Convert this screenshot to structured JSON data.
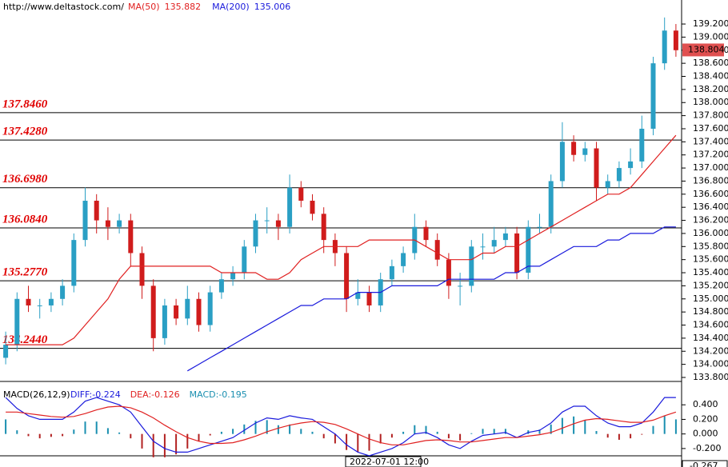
{
  "chart_data": [
    {
      "type": "candlestick",
      "source": "http://www.deltastock.com/",
      "x_label": "2022-07-01 12:00",
      "up_color": "#2a9fc4",
      "down_color": "#d01c1c",
      "last_price": 138.804,
      "open": [
        134.1,
        134.3,
        135.0,
        134.9,
        134.9,
        135.0,
        135.2,
        135.9,
        136.5,
        136.2,
        136.1,
        136.2,
        135.7,
        135.2,
        134.4,
        134.9,
        134.7,
        135.0,
        134.6,
        135.1,
        135.3,
        135.4,
        135.8,
        136.2,
        136.2,
        136.1,
        136.7,
        136.5,
        136.3,
        135.9,
        135.7,
        135.0,
        135.1,
        134.9,
        135.3,
        135.5,
        135.7,
        136.1,
        135.9,
        135.6,
        135.2,
        135.2,
        135.8,
        135.8,
        135.9,
        136.0,
        135.4,
        136.1,
        136.1,
        136.8,
        137.4,
        137.2,
        137.3,
        136.7,
        136.8,
        137.0,
        137.1,
        137.6,
        138.6,
        139.1
      ],
      "high": [
        134.5,
        135.1,
        135.2,
        135.0,
        135.1,
        135.3,
        136.0,
        136.7,
        136.6,
        136.4,
        136.3,
        136.3,
        135.8,
        135.3,
        135.0,
        135.0,
        135.2,
        135.1,
        135.2,
        135.4,
        135.5,
        135.9,
        136.3,
        136.4,
        136.3,
        136.9,
        136.8,
        136.6,
        136.4,
        136.0,
        135.8,
        135.3,
        135.2,
        135.4,
        135.6,
        135.8,
        136.3,
        136.2,
        136.0,
        135.7,
        135.4,
        135.9,
        136.0,
        136.1,
        136.1,
        136.1,
        136.2,
        136.3,
        136.9,
        137.7,
        137.5,
        137.4,
        137.4,
        136.9,
        137.1,
        137.3,
        137.8,
        138.7,
        139.3,
        139.2
      ],
      "low": [
        134.0,
        134.2,
        134.8,
        134.7,
        134.8,
        134.9,
        135.1,
        135.8,
        136.0,
        135.9,
        136.0,
        135.5,
        135.0,
        134.2,
        134.3,
        134.6,
        134.6,
        134.5,
        134.5,
        135.0,
        135.2,
        135.3,
        135.7,
        136.0,
        135.9,
        136.0,
        136.4,
        136.2,
        135.7,
        135.5,
        134.8,
        134.9,
        134.8,
        134.8,
        135.2,
        135.4,
        135.6,
        135.8,
        135.5,
        135.0,
        134.9,
        135.1,
        135.6,
        135.7,
        135.8,
        135.3,
        135.3,
        136.0,
        136.0,
        136.7,
        137.1,
        137.1,
        136.5,
        136.6,
        136.7,
        136.9,
        137.0,
        137.5,
        138.5,
        138.7
      ],
      "close": [
        134.3,
        135.0,
        134.9,
        134.9,
        135.0,
        135.2,
        135.9,
        136.5,
        136.2,
        136.1,
        136.2,
        135.7,
        135.2,
        134.4,
        134.9,
        134.7,
        135.0,
        134.6,
        135.1,
        135.3,
        135.4,
        135.8,
        136.2,
        136.2,
        136.1,
        136.7,
        136.5,
        136.3,
        135.9,
        135.7,
        135.0,
        135.1,
        134.9,
        135.3,
        135.5,
        135.7,
        136.1,
        135.9,
        135.6,
        135.2,
        135.2,
        135.8,
        135.8,
        135.9,
        136.0,
        135.4,
        136.1,
        136.1,
        136.8,
        137.4,
        137.2,
        137.3,
        136.7,
        136.8,
        137.0,
        137.1,
        137.6,
        138.6,
        139.1,
        138.8
      ],
      "series": [
        {
          "name": "MA(50)",
          "color": "#e02020",
          "legend_value": 135.882,
          "values": [
            134.3,
            134.3,
            134.3,
            134.3,
            134.3,
            134.3,
            134.4,
            134.6,
            134.8,
            135.0,
            135.3,
            135.5,
            135.5,
            135.5,
            135.5,
            135.5,
            135.5,
            135.5,
            135.5,
            135.4,
            135.4,
            135.4,
            135.4,
            135.3,
            135.3,
            135.4,
            135.6,
            135.7,
            135.8,
            135.8,
            135.8,
            135.8,
            135.9,
            135.9,
            135.9,
            135.9,
            135.9,
            135.8,
            135.7,
            135.6,
            135.6,
            135.6,
            135.7,
            135.7,
            135.8,
            135.8,
            135.9,
            136.0,
            136.1,
            136.2,
            136.3,
            136.4,
            136.5,
            136.6,
            136.6,
            136.7,
            136.9,
            137.1,
            137.3,
            137.5
          ]
        },
        {
          "name": "MA(200)",
          "color": "#1a1adc",
          "legend_value": 135.006,
          "values": [
            null,
            null,
            null,
            null,
            null,
            null,
            null,
            null,
            null,
            null,
            null,
            null,
            null,
            null,
            null,
            null,
            133.9,
            134.0,
            134.1,
            134.2,
            134.3,
            134.4,
            134.5,
            134.6,
            134.7,
            134.8,
            134.9,
            134.9,
            135.0,
            135.0,
            135.0,
            135.1,
            135.1,
            135.1,
            135.2,
            135.2,
            135.2,
            135.2,
            135.2,
            135.3,
            135.3,
            135.3,
            135.3,
            135.3,
            135.4,
            135.4,
            135.5,
            135.5,
            135.6,
            135.7,
            135.8,
            135.8,
            135.8,
            135.9,
            135.9,
            136.0,
            136.0,
            136.0,
            136.1,
            136.1
          ]
        }
      ],
      "levels": [
        {
          "value": 137.846,
          "label": "137.8460"
        },
        {
          "value": 137.428,
          "label": "137.4280"
        },
        {
          "value": 136.698,
          "label": "136.6980"
        },
        {
          "value": 136.084,
          "label": "136.0840"
        },
        {
          "value": 135.277,
          "label": "135.2770"
        },
        {
          "value": 134.244,
          "label": "134.2440"
        }
      ],
      "ylim": [
        133.751,
        139.567
      ],
      "yticks": [
        {
          "value": 133.8,
          "label": "133.800"
        },
        {
          "value": 134.0,
          "label": "134.000"
        },
        {
          "value": 134.2,
          "label": "134.200"
        },
        {
          "value": 134.4,
          "label": "134.400"
        },
        {
          "value": 134.6,
          "label": "134.600"
        },
        {
          "value": 134.8,
          "label": "134.800"
        },
        {
          "value": 135.0,
          "label": "135.000"
        },
        {
          "value": 135.2,
          "label": "135.200"
        },
        {
          "value": 135.4,
          "label": "135.400"
        },
        {
          "value": 135.6,
          "label": "135.600"
        },
        {
          "value": 135.8,
          "label": "135.800"
        },
        {
          "value": 136.0,
          "label": "136.000"
        },
        {
          "value": 136.2,
          "label": "136.200"
        },
        {
          "value": 136.4,
          "label": "136.400"
        },
        {
          "value": 136.6,
          "label": "136.600"
        },
        {
          "value": 136.8,
          "label": "136.800"
        },
        {
          "value": 137.0,
          "label": "137.000"
        },
        {
          "value": 137.2,
          "label": "137.200"
        },
        {
          "value": 137.4,
          "label": "137.400"
        },
        {
          "value": 137.6,
          "label": "137.600"
        },
        {
          "value": 137.8,
          "label": "137.800"
        },
        {
          "value": 138.0,
          "label": "138.000"
        },
        {
          "value": 138.2,
          "label": "138.200"
        },
        {
          "value": 138.4,
          "label": "138.400"
        },
        {
          "value": 138.6,
          "label": "138.600"
        },
        {
          "value": 138.8,
          "label": "138.800"
        },
        {
          "value": 139.0,
          "label": "139.000"
        },
        {
          "value": 139.2,
          "label": "139.200"
        }
      ]
    },
    {
      "type": "macd",
      "title": "MACD(26,12,9)",
      "current_value": -0.267,
      "series": [
        {
          "name": "DIFF:",
          "color": "#1a1adc",
          "legend_value": -0.224,
          "values": [
            0.5,
            0.35,
            0.25,
            0.2,
            0.2,
            0.2,
            0.3,
            0.45,
            0.5,
            0.45,
            0.4,
            0.3,
            0.1,
            -0.1,
            -0.2,
            -0.25,
            -0.25,
            -0.2,
            -0.15,
            -0.1,
            -0.05,
            0.05,
            0.15,
            0.22,
            0.2,
            0.25,
            0.22,
            0.2,
            0.1,
            0.0,
            -0.15,
            -0.25,
            -0.3,
            -0.25,
            -0.2,
            -0.12,
            0.0,
            0.02,
            -0.05,
            -0.15,
            -0.2,
            -0.1,
            -0.02,
            0.0,
            0.02,
            -0.05,
            0.02,
            0.05,
            0.15,
            0.3,
            0.38,
            0.38,
            0.25,
            0.15,
            0.1,
            0.1,
            0.15,
            0.3,
            0.5,
            0.5
          ]
        },
        {
          "name": "DEA:",
          "color": "#e02020",
          "legend_value": -0.126,
          "values": [
            0.3,
            0.3,
            0.28,
            0.26,
            0.24,
            0.23,
            0.24,
            0.28,
            0.33,
            0.37,
            0.38,
            0.36,
            0.3,
            0.22,
            0.12,
            0.03,
            -0.05,
            -0.1,
            -0.13,
            -0.13,
            -0.12,
            -0.08,
            -0.03,
            0.03,
            0.08,
            0.12,
            0.15,
            0.17,
            0.16,
            0.13,
            0.07,
            0.0,
            -0.07,
            -0.12,
            -0.15,
            -0.15,
            -0.12,
            -0.09,
            -0.08,
            -0.09,
            -0.11,
            -0.11,
            -0.09,
            -0.07,
            -0.05,
            -0.05,
            -0.03,
            -0.01,
            0.02,
            0.08,
            0.14,
            0.19,
            0.21,
            0.2,
            0.18,
            0.16,
            0.16,
            0.19,
            0.25,
            0.3
          ]
        },
        {
          "name": "MACD:",
          "color": "#1a8fb0",
          "down_color": "#b22222",
          "legend_value": -0.195,
          "bars": true,
          "values": [
            0.2,
            0.05,
            -0.03,
            -0.06,
            -0.04,
            -0.03,
            0.06,
            0.17,
            0.17,
            0.08,
            0.02,
            -0.06,
            -0.2,
            -0.32,
            -0.32,
            -0.28,
            -0.2,
            -0.1,
            -0.02,
            0.03,
            0.07,
            0.13,
            0.18,
            0.19,
            0.12,
            0.13,
            0.07,
            0.03,
            -0.06,
            -0.13,
            -0.22,
            -0.25,
            -0.23,
            -0.13,
            -0.05,
            0.03,
            0.12,
            0.11,
            0.03,
            -0.06,
            -0.09,
            0.01,
            0.07,
            0.07,
            0.07,
            0.0,
            0.05,
            0.06,
            0.13,
            0.22,
            0.24,
            0.19,
            0.04,
            -0.05,
            -0.08,
            -0.06,
            -0.01,
            0.11,
            0.25,
            0.2
          ]
        }
      ],
      "ylim": [
        -0.3,
        0.6
      ],
      "yticks": [
        {
          "value": 0.4,
          "label": "0.400"
        },
        {
          "value": 0.2,
          "label": "0.200"
        },
        {
          "value": 0.0,
          "label": "0.000"
        },
        {
          "value": -0.2,
          "label": "-0.200"
        }
      ]
    }
  ]
}
